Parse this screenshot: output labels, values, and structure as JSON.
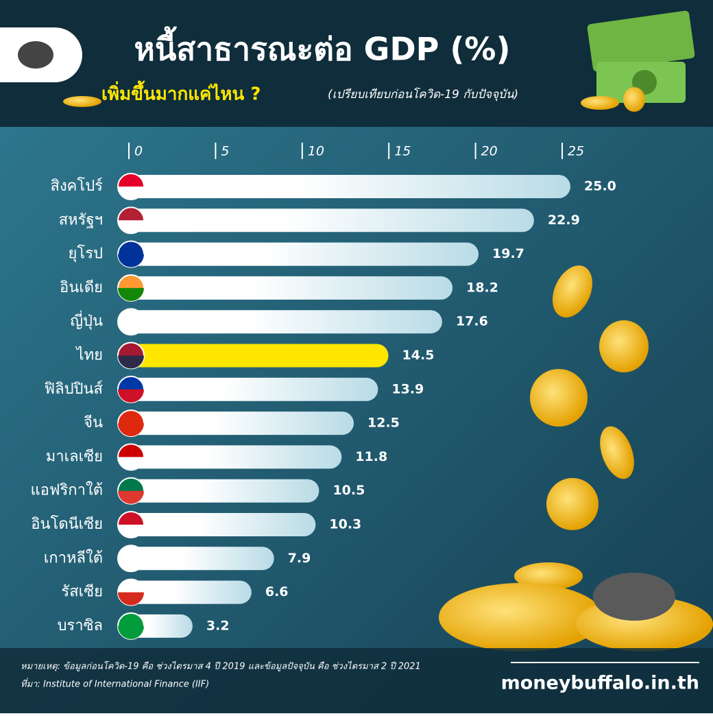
{
  "chart_data": {
    "type": "bar",
    "orientation": "horizontal",
    "title": "หนี้สาธารณะต่อ GDP (%)",
    "subtitle": "เพิ่มขึ้นมากแค่ไหน ?",
    "subtitle_note": "(เปรียบเทียบก่อนโควิด-19 กับปัจจุบัน)",
    "categories": [
      "สิงคโปร์",
      "สหรัฐฯ",
      "ยุโรป",
      "อินเดีย",
      "ญี่ปุ่น",
      "ไทย",
      "ฟิลิปปินส์",
      "จีน",
      "มาเลเซีย",
      "แอฟริกาใต้",
      "อินโดนีเซีย",
      "เกาหลีใต้",
      "รัสเซีย",
      "บราซิล"
    ],
    "values": [
      25.0,
      22.9,
      19.7,
      18.2,
      17.6,
      14.5,
      13.9,
      12.5,
      11.8,
      10.5,
      10.3,
      7.9,
      6.6,
      3.2
    ],
    "value_labels": [
      "25.0",
      "22.9",
      "19.7",
      "18.2",
      "17.6",
      "14.5",
      "13.9",
      "12.5",
      "11.8",
      "10.5",
      "10.3",
      "7.9",
      "6.6",
      "3.2"
    ],
    "bar_colors": [
      "#ffffff",
      "#ffffff",
      "#ffffff",
      "#ffffff",
      "#ffffff",
      "#ffe600",
      "#ffffff",
      "#ffffff",
      "#ffffff",
      "#ffffff",
      "#ffffff",
      "#ffffff",
      "#ffffff",
      "#ffffff"
    ],
    "xlim": [
      0,
      25
    ],
    "xticks": [
      0,
      5,
      10,
      15,
      20,
      25
    ],
    "grid": false,
    "notes": [
      "หมายเหตุ: ข้อมูลก่อนโควิด-19 คือ ช่วงไตรมาส 4 ปี 2019 และข้อมูลปัจจุบัน คือ ช่วงไตรมาส 2 ปี 2021",
      "ที่มา: Institute of International Finance (IIF)"
    ],
    "brand": "moneybuffalo.in.th"
  }
}
